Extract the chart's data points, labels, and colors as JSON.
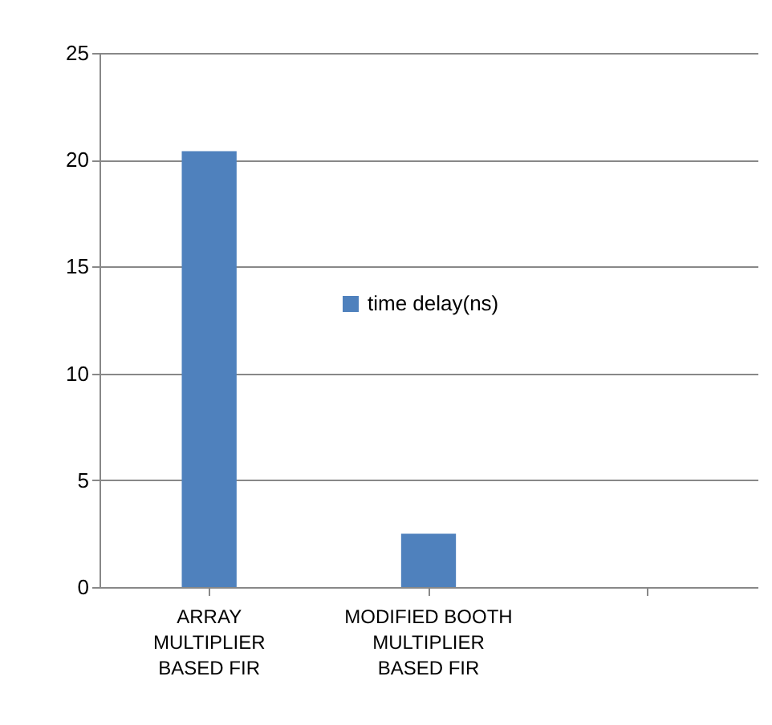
{
  "chart_data": {
    "type": "bar",
    "categories": [
      "ARRAY MULTIPLIER BASED FIR",
      "MODIFIED BOOTH MULTIPLIER BASED FIR",
      null
    ],
    "series": [
      {
        "name": "time delay(ns)",
        "color": "#4f81bd",
        "values": [
          20.4,
          2.5,
          null
        ]
      }
    ],
    "ylim": [
      0,
      25
    ],
    "yticks": [
      0,
      5,
      10,
      15,
      20,
      25
    ],
    "grid": "y",
    "legend": "center"
  }
}
